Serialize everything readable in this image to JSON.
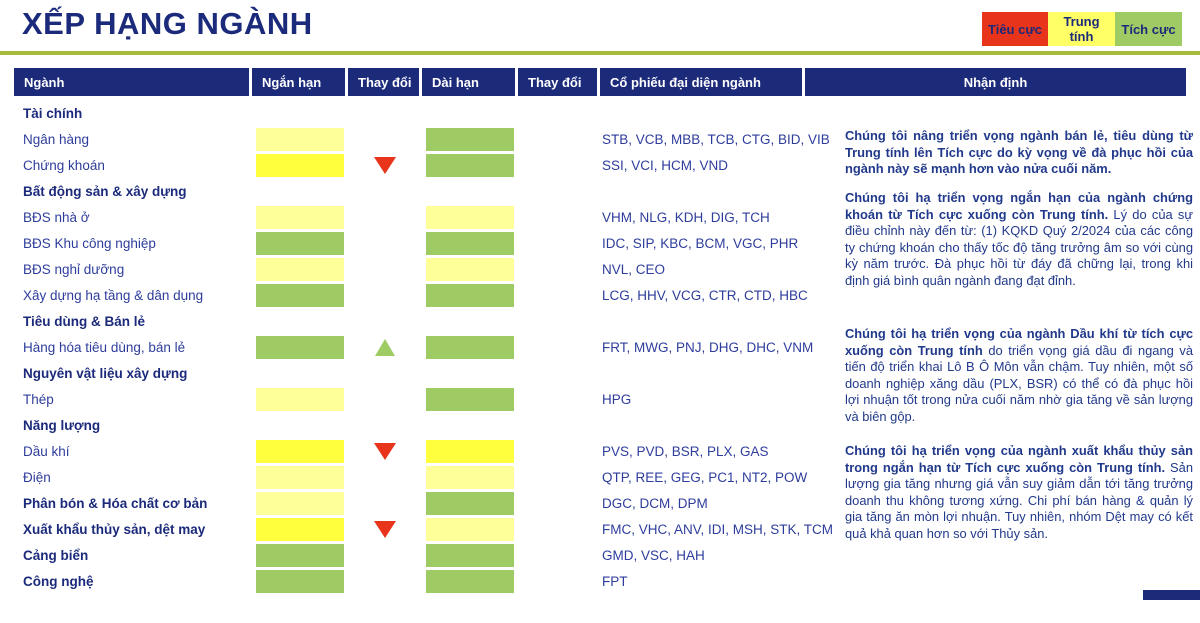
{
  "title": "XẾP HẠNG NGÀNH",
  "colors": {
    "navy": "#1c2a7a",
    "label-blue": "#2e3d9c",
    "section-blue": "#1b2a7b",
    "comment-blue": "#21398b",
    "pale": "#ffff99",
    "bright": "#ffff3e",
    "green": "#9ecb63",
    "red": "#e7341b",
    "olive": "#a6bc3c",
    "legend-yellow": "#ffff66"
  },
  "legend": [
    {
      "label": "Tiêu cực",
      "color": "#e7341b"
    },
    {
      "label": "Trung tính",
      "color": "#ffff66"
    },
    {
      "label": "Tích cực",
      "color": "#9ecb63"
    }
  ],
  "table": {
    "headers": [
      "Ngành",
      "Ngắn hạn",
      "Thay đổi",
      "Dài hạn",
      "Thay đổi",
      "Cổ phiếu đại diện ngành",
      "Nhận định"
    ],
    "rows": [
      {
        "type": "section",
        "label": "Tài chính"
      },
      {
        "type": "industry",
        "label": "Ngân hàng",
        "short": "neutral",
        "long": "positive",
        "stocks": "STB, VCB, MBB, TCB, CTG, BID, VIB"
      },
      {
        "type": "industry",
        "label": "Chứng khoán",
        "short": "neutral_new",
        "short_change": "down",
        "long": "positive",
        "stocks": "SSI, VCI, HCM, VND"
      },
      {
        "type": "section",
        "label": "Bất động sản & xây dựng"
      },
      {
        "type": "industry",
        "label": "BĐS nhà ở",
        "short": "neutral",
        "long": "neutral",
        "stocks": "VHM, NLG, KDH, DIG, TCH"
      },
      {
        "type": "industry",
        "label": "BĐS Khu công nghiệp",
        "short": "positive",
        "long": "positive",
        "stocks": "IDC, SIP, KBC, BCM, VGC, PHR"
      },
      {
        "type": "industry",
        "label": "BĐS nghỉ dưỡng",
        "short": "neutral",
        "long": "neutral",
        "stocks": "NVL, CEO"
      },
      {
        "type": "industry",
        "label": "Xây dựng hạ tầng & dân dụng",
        "short": "positive",
        "long": "positive",
        "stocks": "LCG, HHV,  VCG, CTR, CTD, HBC"
      },
      {
        "type": "section",
        "label": "Tiêu dùng & Bán lẻ"
      },
      {
        "type": "industry",
        "label": "Hàng hóa tiêu dùng, bán lẻ",
        "short": "positive",
        "short_change": "up",
        "long": "positive",
        "stocks": "FRT, MWG, PNJ, DHG, DHC, VNM"
      },
      {
        "type": "section",
        "label": "Nguyên vật liệu xây dựng"
      },
      {
        "type": "industry",
        "label": "Thép",
        "short": "neutral",
        "long": "positive",
        "stocks": "HPG"
      },
      {
        "type": "section",
        "label": "Năng lượng"
      },
      {
        "type": "industry",
        "label": "Dầu khí",
        "short": "neutral_new",
        "short_change": "down",
        "long": "neutral_new",
        "stocks": "PVS, PVD, BSR, PLX, GAS"
      },
      {
        "type": "industry",
        "label": "Điện",
        "short": "neutral",
        "long": "neutral",
        "stocks": "QTP, REE, GEG, PC1, NT2, POW"
      },
      {
        "type": "industry",
        "label": "Phân bón & Hóa chất cơ bản",
        "bold": true,
        "short": "neutral",
        "long": "positive",
        "stocks": "DGC, DCM, DPM"
      },
      {
        "type": "industry",
        "label": "Xuất khẩu thủy sản, dệt may",
        "bold": true,
        "short": "neutral_new",
        "short_change": "down",
        "long": "neutral",
        "stocks": "FMC, VHC, ANV, IDI, MSH, STK, TCM"
      },
      {
        "type": "industry",
        "label": "Cảng biển",
        "bold": true,
        "short": "positive",
        "long": "positive",
        "stocks": "GMD, VSC, HAH"
      },
      {
        "type": "industry",
        "label": "Công nghệ",
        "bold": true,
        "short": "positive",
        "long": "positive",
        "stocks": "FPT"
      }
    ]
  },
  "comments": [
    {
      "bold": "Chúng tôi nâng triển vọng ngành bán lẻ, tiêu dùng từ Trung tính lên Tích cực do kỳ vọng về đà phục hồi của ngành này sẽ mạnh hơn vào nửa cuối năm.",
      "regular": ""
    },
    {
      "bold": "Chúng tôi  hạ triển vọng ngắn hạn của ngành chứng khoán từ Tích cực xuống còn Trung tính.",
      "regular": " Lý do của sự điều chỉnh này đến từ: (1) KQKD Quý 2/2024 của các công ty chứng khoán cho thấy tốc độ tăng trưởng âm so với cùng kỳ năm trước.  Đà phục hồi từ đáy đã chững lại, trong khi định giá bình quân ngành đang đạt đỉnh."
    },
    {
      "bold": "Chúng tôi hạ triển vọng của ngành Dầu khí từ tích cực xuống còn Trung tính",
      "regular": " do triển vọng giá dầu đi ngang và tiến độ triển khai Lô B Ô Môn vẫn chậm. Tuy nhiên, một số doanh nghiệp xăng dầu (PLX, BSR) có thể có đà phục hồi lợi nhuận tốt trong nửa cuối năm nhờ gia tăng về sản lượng và biên gộp."
    },
    {
      "bold": "Chúng tôi hạ triển vọng của ngành xuất khẩu thủy sản trong ngắn hạn từ Tích cực xuống còn Trung tính.",
      "regular": " Sản lượng gia tăng nhưng giá vẫn suy giảm dẫn tới tăng trưởng doanh thu không tương xứng. Chi phí bán hàng & quản lý gia tăng ăn mòn lợi nhuận. Tuy nhiên, nhóm Dệt may có kết quả khả quan hơn so với Thủy sản."
    }
  ]
}
